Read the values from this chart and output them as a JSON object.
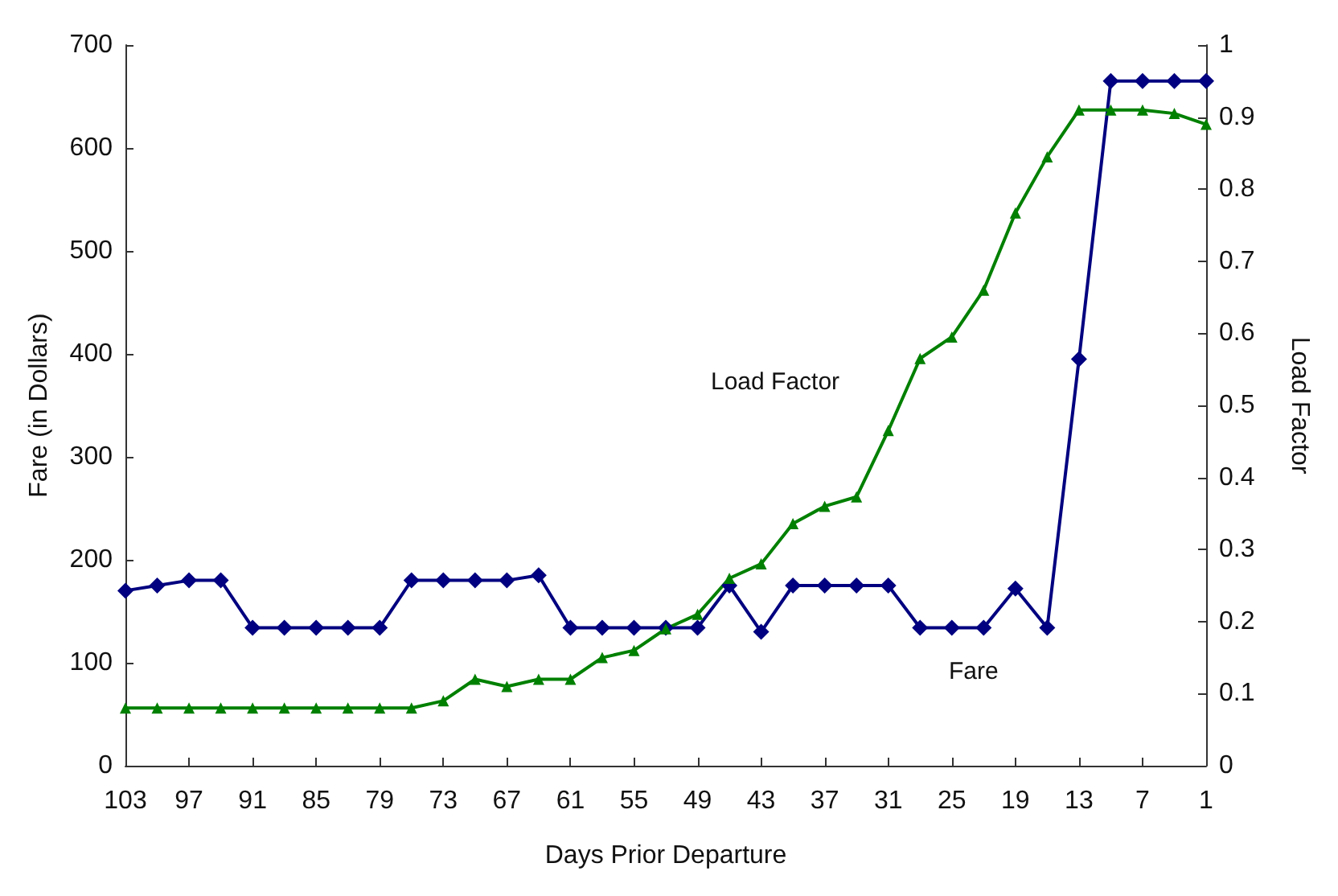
{
  "chart_data": {
    "type": "line",
    "xlabel": "Days Prior Departure",
    "ylabel": "Fare (in Dollars)",
    "y2label": "Load Factor",
    "categories": [
      "103",
      null,
      "97",
      null,
      "91",
      null,
      "85",
      null,
      "79",
      null,
      "73",
      null,
      "67",
      null,
      "61",
      null,
      "55",
      null,
      "49",
      null,
      "43",
      null,
      "37",
      null,
      "31",
      null,
      "25",
      null,
      "19",
      null,
      "13",
      null,
      "7",
      null,
      "1"
    ],
    "series": [
      {
        "name": "Fare",
        "color": "#000080",
        "marker": "diamond",
        "values": [
          170,
          175,
          180,
          180,
          134,
          134,
          134,
          134,
          134,
          180,
          180,
          180,
          180,
          185,
          134,
          134,
          134,
          134,
          134,
          175,
          130,
          175,
          175,
          175,
          175,
          134,
          134,
          134,
          172,
          134,
          395,
          665,
          665,
          665,
          665
        ]
      },
      {
        "name": "Load Factor",
        "color": "#008000",
        "marker": "triangle",
        "axis": "y2",
        "values": [
          0.08,
          0.08,
          0.08,
          0.08,
          0.08,
          0.08,
          0.08,
          0.08,
          0.08,
          0.08,
          0.09,
          0.12,
          0.11,
          0.12,
          0.12,
          0.15,
          0.16,
          0.19,
          0.21,
          0.26,
          0.28,
          0.336,
          0.36,
          0.373,
          0.465,
          0.565,
          0.595,
          0.66,
          0.767,
          0.845,
          0.91,
          0.91,
          0.91,
          0.905,
          0.89
        ]
      }
    ],
    "ylim": [
      0,
      700
    ],
    "yticks": [
      0,
      100,
      200,
      300,
      400,
      500,
      600,
      700
    ],
    "y2lim": [
      0,
      1
    ],
    "y2ticks": [
      0,
      0.1,
      0.2,
      0.3,
      0.4,
      0.5,
      0.6,
      0.7,
      0.8,
      0.9,
      1
    ],
    "grid": false,
    "legend": false
  }
}
